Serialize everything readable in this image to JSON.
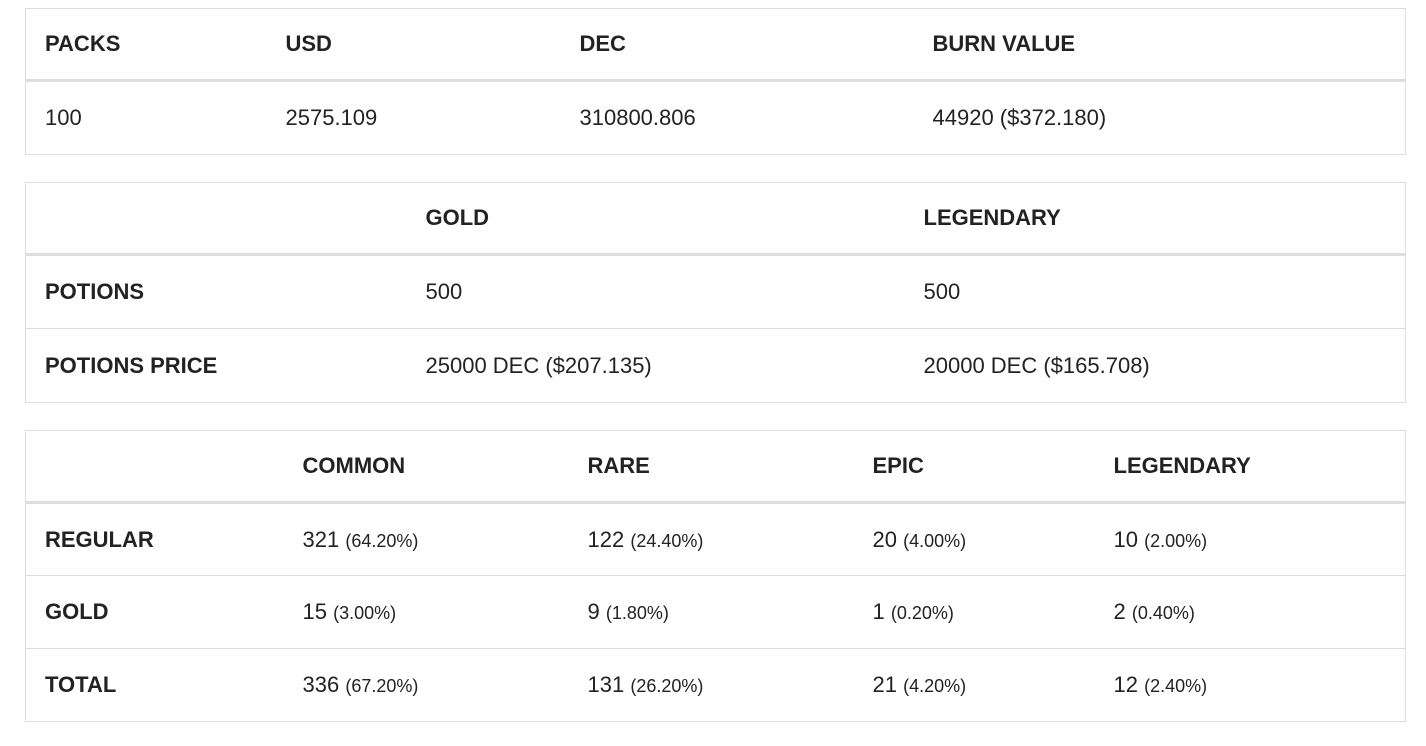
{
  "packs_table": {
    "headers": [
      "PACKS",
      "USD",
      "DEC",
      "BURN VALUE"
    ],
    "row": [
      "100",
      "2575.109",
      "310800.806",
      "44920 ($372.180)"
    ]
  },
  "potions_table": {
    "headers": [
      "",
      "GOLD",
      "LEGENDARY"
    ],
    "rows": [
      {
        "label": "POTIONS",
        "gold": "500",
        "legendary": "500"
      },
      {
        "label": "POTIONS PRICE",
        "gold": "25000 DEC ($207.135)",
        "legendary": "20000 DEC ($165.708)"
      }
    ]
  },
  "cards_table": {
    "headers": [
      "",
      "COMMON",
      "RARE",
      "EPIC",
      "LEGENDARY"
    ],
    "rows": [
      {
        "label": "REGULAR",
        "cells": [
          {
            "count": "321",
            "pct": "(64.20%)"
          },
          {
            "count": "122",
            "pct": "(24.40%)"
          },
          {
            "count": "20",
            "pct": "(4.00%)"
          },
          {
            "count": "10",
            "pct": "(2.00%)"
          }
        ]
      },
      {
        "label": "GOLD",
        "cells": [
          {
            "count": "15",
            "pct": "(3.00%)"
          },
          {
            "count": "9",
            "pct": "(1.80%)"
          },
          {
            "count": "1",
            "pct": "(0.20%)"
          },
          {
            "count": "2",
            "pct": "(0.40%)"
          }
        ]
      },
      {
        "label": "TOTAL",
        "cells": [
          {
            "count": "336",
            "pct": "(67.20%)"
          },
          {
            "count": "131",
            "pct": "(26.20%)"
          },
          {
            "count": "21",
            "pct": "(4.20%)"
          },
          {
            "count": "12",
            "pct": "(2.40%)"
          }
        ]
      }
    ]
  }
}
